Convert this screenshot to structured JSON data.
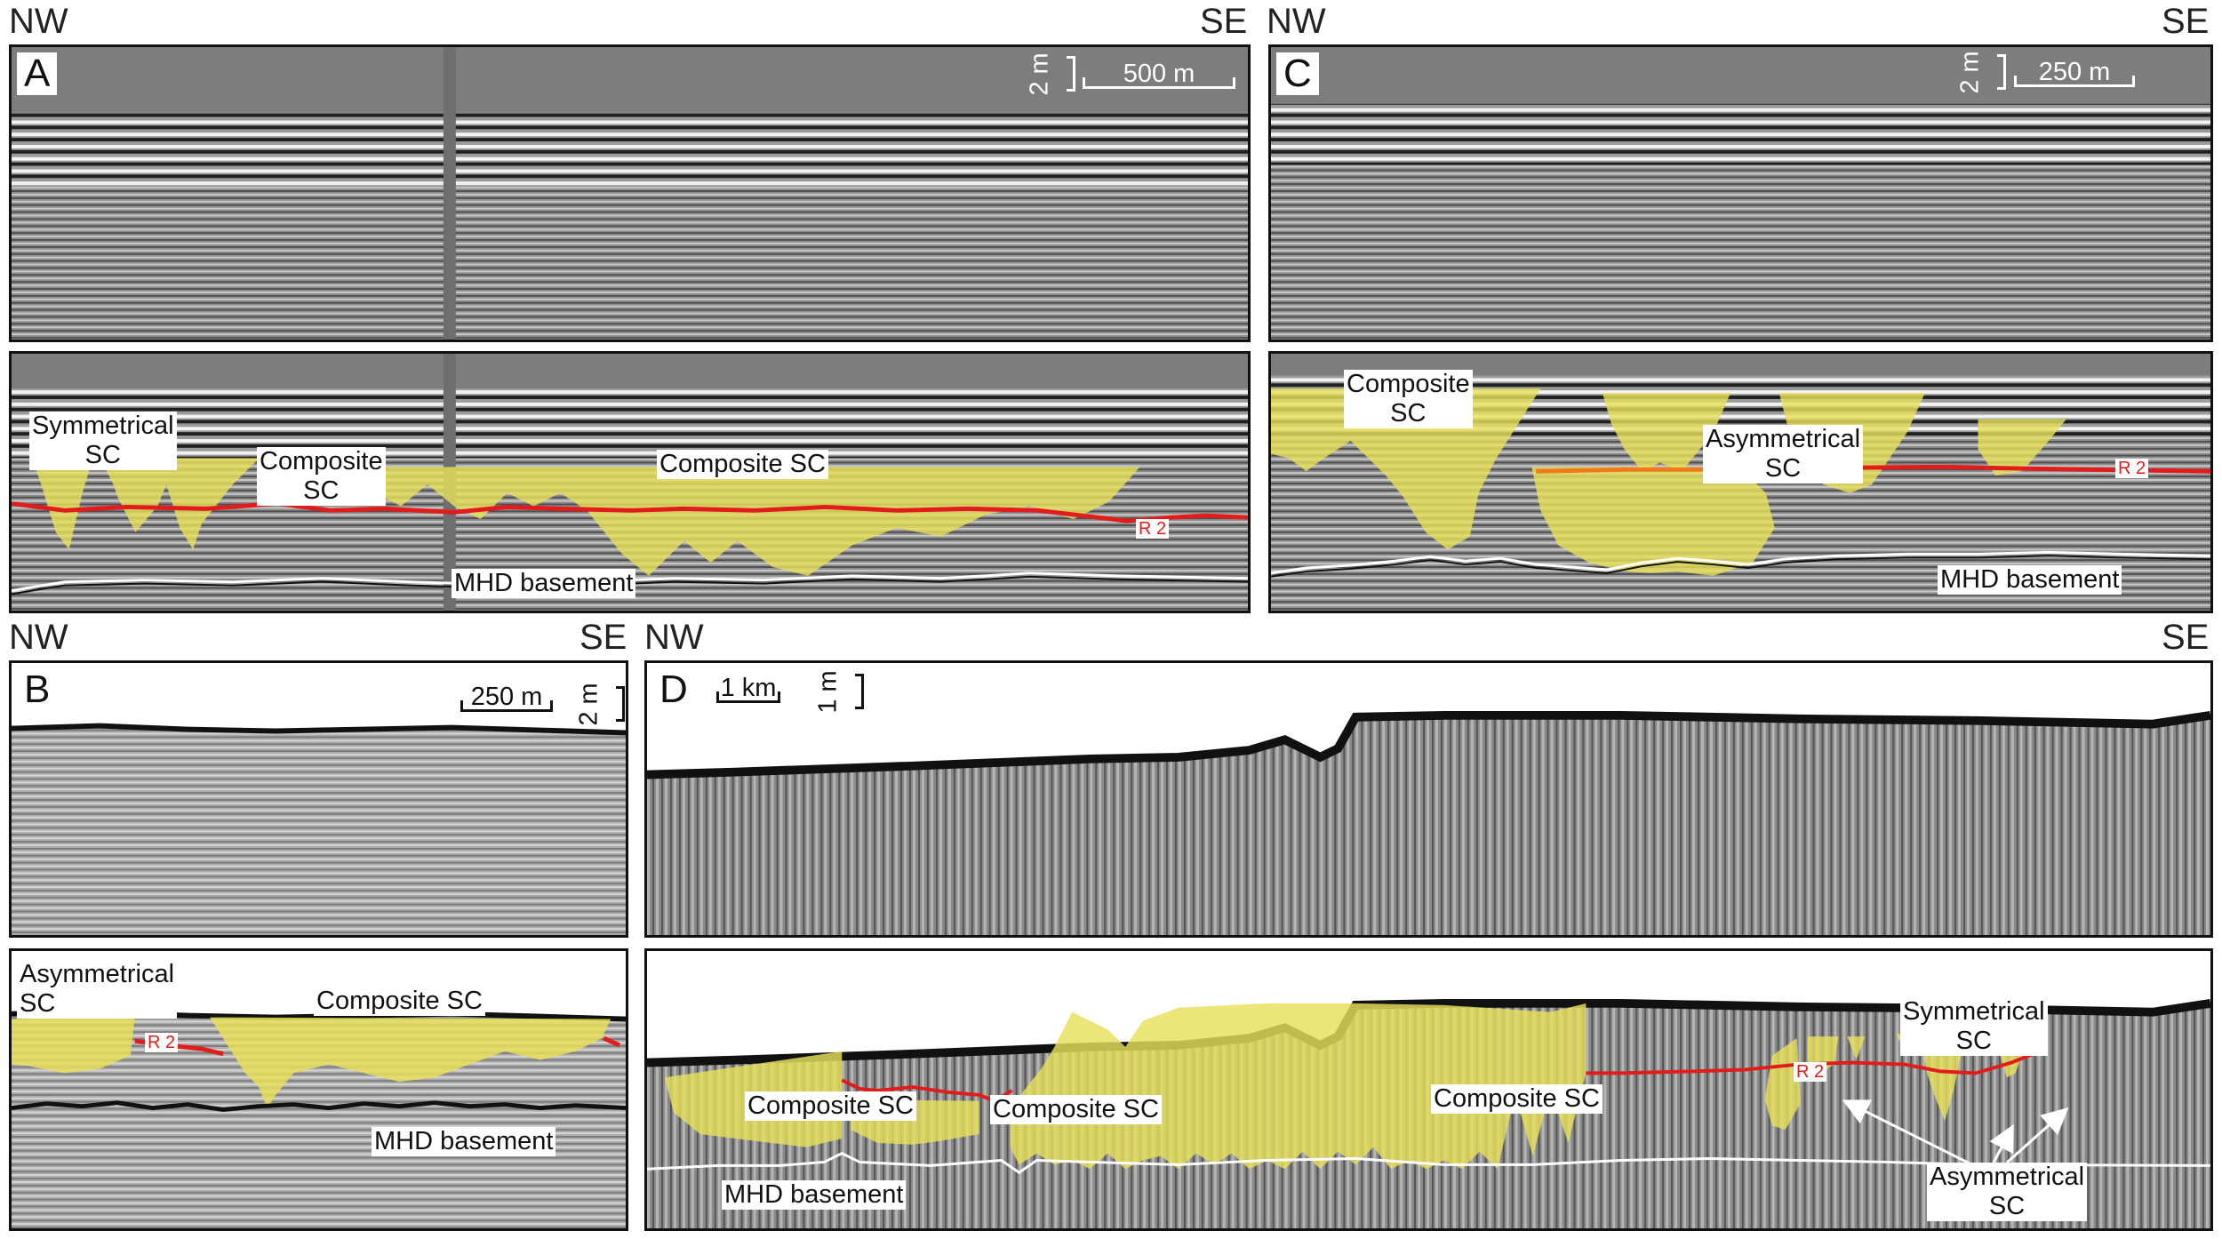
{
  "panels": {
    "A": {
      "letter": "A",
      "dir_left": "NW",
      "dir_right": "SE",
      "scale_h": "500 m",
      "scale_v": "2 m",
      "labels": {
        "symmetrical": "Symmetrical\nSC",
        "composite1": "Composite\nSC",
        "composite2": "Composite SC",
        "r2": "R 2",
        "basement": "MHD basement"
      }
    },
    "B": {
      "letter": "B",
      "dir_left": "NW",
      "dir_right": "SE",
      "scale_h": "250 m",
      "scale_v": "2 m",
      "labels": {
        "asymmetrical": "Asymmetrical\nSC",
        "composite": "Composite SC",
        "r2": "R 2",
        "basement": "MHD basement"
      }
    },
    "C": {
      "letter": "C",
      "dir_left": "NW",
      "dir_right": "SE",
      "scale_h": "250 m",
      "scale_v": "2 m",
      "labels": {
        "composite": "Composite\nSC",
        "asymmetrical": "Asymmetrical\nSC",
        "r2": "R 2",
        "basement": "MHD basement"
      }
    },
    "D": {
      "letter": "D",
      "dir_left": "NW",
      "dir_right": "SE",
      "scale_h": "1 km",
      "scale_v": "1 m",
      "labels": {
        "composite1": "Composite SC",
        "composite2": "Composite SC",
        "composite3": "Composite SC",
        "symmetrical": "Symmetrical\nSC",
        "asymmetrical": "Asymmetrical\nSC",
        "r2": "R 2",
        "basement": "MHD basement"
      }
    }
  },
  "colors": {
    "channel_fill": "#e8df5a",
    "r2_line": "#e21b1b",
    "r2_line_alt": "#f07a1a",
    "basement_line": "#ffffff",
    "seismic_bg": "#8c8c8c"
  }
}
